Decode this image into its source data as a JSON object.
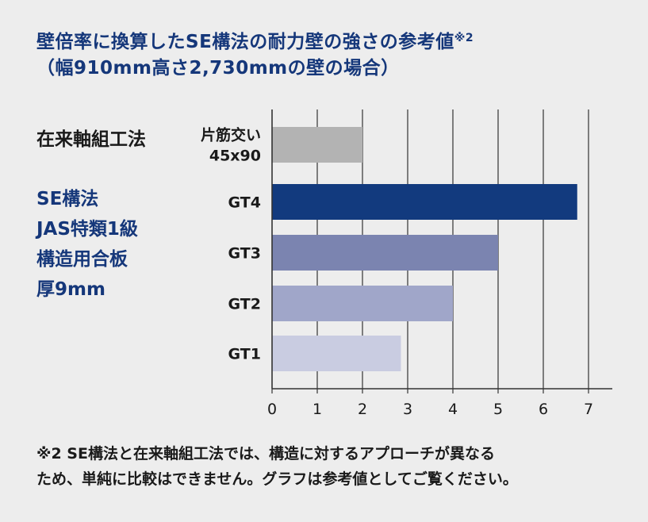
{
  "title": {
    "line1": "壁倍率に換算したSE構法の耐力壁の強さの参考値",
    "sup": "※2",
    "line2": "（幅910mm高さ2,730mmの壁の場合）"
  },
  "groups": {
    "conventional": "在来軸組工法",
    "se": [
      "SE構法",
      "JAS特類1級",
      "構造用合板",
      "厚9mm"
    ]
  },
  "colors": {
    "title": "#15377a",
    "bars": [
      "#b3b3b3",
      "#123a7e",
      "#7b84b0",
      "#a0a6c9",
      "#c9cce1"
    ],
    "grid": "#333333"
  },
  "chart_data": {
    "type": "bar",
    "orientation": "horizontal",
    "categories": [
      "片筋交い 45x90",
      "GT4",
      "GT3",
      "GT2",
      "GT1"
    ],
    "category_lines": [
      [
        "片筋交い",
        "45x90"
      ],
      [
        "GT4"
      ],
      [
        "GT3"
      ],
      [
        "GT2"
      ],
      [
        "GT1"
      ]
    ],
    "values": [
      2.0,
      6.75,
      5.0,
      4.0,
      2.85
    ],
    "xlim": [
      0,
      7
    ],
    "xticks": [
      "0",
      "1",
      "2",
      "3",
      "4",
      "5",
      "6",
      "7"
    ],
    "grid": true,
    "title": "壁倍率に換算したSE構法の耐力壁の強さの参考値"
  },
  "footnote": {
    "line1": "※2 SE構法と在来軸組工法では、構造に対するアプローチが異なる",
    "line2": "ため、単純に比較はできません。グラフは参考値としてご覧ください。"
  }
}
